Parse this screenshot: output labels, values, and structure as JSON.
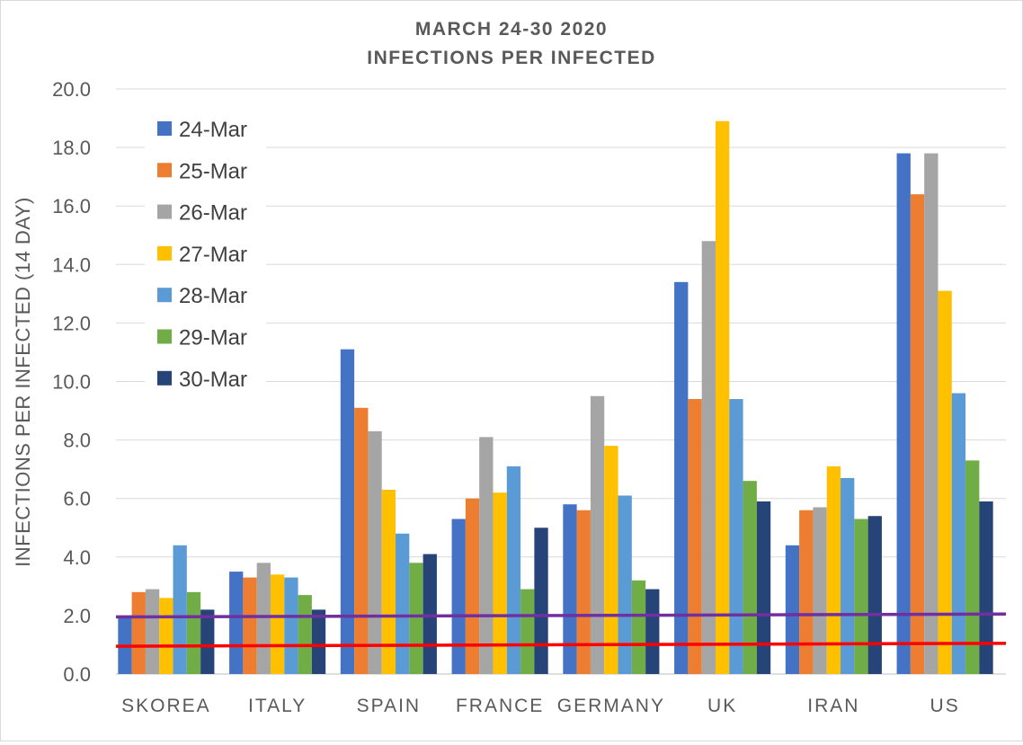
{
  "chart_data": {
    "type": "bar",
    "title_lines": [
      "MARCH 24-30 2020",
      "INFECTIONS PER INFECTED"
    ],
    "ylabel": "INFECTIONS PER INFECTED (14 DAY)",
    "xlabel": "",
    "ylim": [
      0,
      20
    ],
    "ytick_step": 2,
    "ytick_labels": [
      "0.0",
      "2.0",
      "4.0",
      "6.0",
      "8.0",
      "10.0",
      "12.0",
      "14.0",
      "16.0",
      "18.0",
      "20.0"
    ],
    "grid": true,
    "legend_position": "top-left",
    "categories": [
      "SKOREA",
      "ITALY",
      "SPAIN",
      "FRANCE",
      "GERMANY",
      "UK",
      "IRAN",
      "US"
    ],
    "series": [
      {
        "name": "24-Mar",
        "color": "#4472c4",
        "values": [
          2.0,
          3.5,
          11.1,
          5.3,
          5.8,
          13.4,
          4.4,
          17.8
        ]
      },
      {
        "name": "25-Mar",
        "color": "#ed7d31",
        "values": [
          2.8,
          3.3,
          9.1,
          6.0,
          5.6,
          9.4,
          5.6,
          16.4
        ]
      },
      {
        "name": "26-Mar",
        "color": "#a5a5a5",
        "values": [
          2.9,
          3.8,
          8.3,
          8.1,
          9.5,
          14.8,
          5.7,
          17.8
        ]
      },
      {
        "name": "27-Mar",
        "color": "#ffc000",
        "values": [
          2.6,
          3.4,
          6.3,
          6.2,
          7.8,
          18.9,
          7.1,
          13.1
        ]
      },
      {
        "name": "28-Mar",
        "color": "#5b9bd5",
        "values": [
          4.4,
          3.3,
          4.8,
          7.1,
          6.1,
          9.4,
          6.7,
          9.6
        ]
      },
      {
        "name": "29-Mar",
        "color": "#70ad47",
        "values": [
          2.8,
          2.7,
          3.8,
          2.9,
          3.2,
          6.6,
          5.3,
          7.3
        ]
      },
      {
        "name": "30-Mar",
        "color": "#264478",
        "values": [
          2.2,
          2.2,
          4.1,
          5.0,
          2.9,
          5.9,
          5.4,
          5.9
        ]
      }
    ],
    "reference_lines": [
      {
        "color": "#7030a0",
        "y_start": 1.95,
        "y_end": 2.05
      },
      {
        "color": "#ff0000",
        "y_start": 0.95,
        "y_end": 1.05
      }
    ]
  }
}
